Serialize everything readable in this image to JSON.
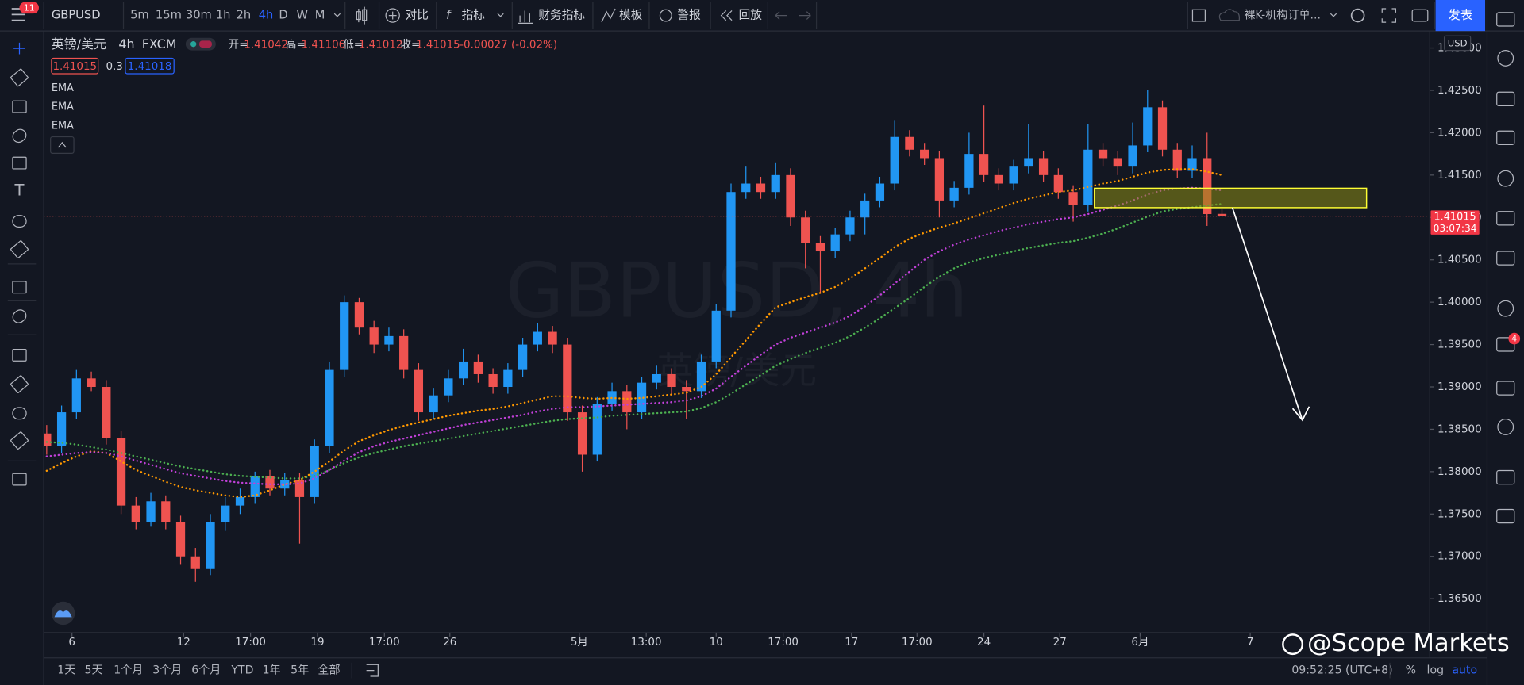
{
  "toolbar": {
    "badge": "11",
    "symbol": "GBPUSD",
    "intervals": [
      "5m",
      "15m",
      "30m",
      "1h",
      "2h",
      "4h",
      "D",
      "W",
      "M"
    ],
    "buttons": [
      "对比",
      "指标",
      "财务指标",
      "模板",
      "警报",
      "回放"
    ],
    "layout_name": "裸K-机构订单...",
    "publish": "发表"
  },
  "legend": {
    "name": "英镑/美元",
    "interval": "4h",
    "exchange": "FXCM",
    "ohlc": [
      {
        "label": "开=",
        "value": "1.41042"
      },
      {
        "label": "高=",
        "value": "1.41106"
      },
      {
        "label": "低=",
        "value": "1.41012"
      },
      {
        "label": "收=",
        "value": "1.41015"
      }
    ],
    "change": "-0.00027 (-0.02%)",
    "bid": "1.41015",
    "spread": "0.3",
    "ask": "1.41018",
    "indicators": [
      "EMA",
      "EMA",
      "EMA"
    ]
  },
  "watermark": {
    "symbol": "GBPUSD, 4h",
    "name": "英镑/美元"
  },
  "chart_data": {
    "type": "candlestick",
    "up_color": "#2196f3",
    "down_color": "#ef5350",
    "candles": [
      [
        1.3845,
        1.3855,
        1.382,
        1.383
      ],
      [
        1.383,
        1.3878,
        1.3822,
        1.387
      ],
      [
        1.387,
        1.392,
        1.3862,
        1.391
      ],
      [
        1.391,
        1.3918,
        1.3895,
        1.39
      ],
      [
        1.39,
        1.3908,
        1.3832,
        1.384
      ],
      [
        1.384,
        1.3848,
        1.375,
        1.376
      ],
      [
        1.376,
        1.377,
        1.3732,
        1.374
      ],
      [
        1.374,
        1.3775,
        1.3735,
        1.3765
      ],
      [
        1.3765,
        1.3772,
        1.3732,
        1.374
      ],
      [
        1.374,
        1.3748,
        1.369,
        1.37
      ],
      [
        1.37,
        1.371,
        1.367,
        1.3685
      ],
      [
        1.3685,
        1.375,
        1.3678,
        1.374
      ],
      [
        1.374,
        1.377,
        1.373,
        1.376
      ],
      [
        1.376,
        1.378,
        1.375,
        1.377
      ],
      [
        1.377,
        1.38,
        1.3762,
        1.3795
      ],
      [
        1.3795,
        1.3802,
        1.3772,
        1.378
      ],
      [
        1.378,
        1.3798,
        1.3772,
        1.379
      ],
      [
        1.379,
        1.3798,
        1.3715,
        1.377
      ],
      [
        1.377,
        1.3838,
        1.3762,
        1.383
      ],
      [
        1.383,
        1.393,
        1.3822,
        1.392
      ],
      [
        1.392,
        1.4008,
        1.3912,
        1.4
      ],
      [
        1.4,
        1.4005,
        1.3962,
        1.397
      ],
      [
        1.397,
        1.3978,
        1.394,
        1.395
      ],
      [
        1.395,
        1.397,
        1.3942,
        1.396
      ],
      [
        1.396,
        1.3968,
        1.391,
        1.392
      ],
      [
        1.392,
        1.3928,
        1.386,
        1.387
      ],
      [
        1.387,
        1.3898,
        1.3862,
        1.389
      ],
      [
        1.389,
        1.392,
        1.3882,
        1.391
      ],
      [
        1.391,
        1.3945,
        1.3902,
        1.393
      ],
      [
        1.393,
        1.3938,
        1.3905,
        1.3915
      ],
      [
        1.3915,
        1.3922,
        1.3892,
        1.39
      ],
      [
        1.39,
        1.3928,
        1.3892,
        1.392
      ],
      [
        1.392,
        1.3958,
        1.3912,
        1.395
      ],
      [
        1.395,
        1.3975,
        1.3942,
        1.3965
      ],
      [
        1.3965,
        1.3972,
        1.394,
        1.395
      ],
      [
        1.395,
        1.3958,
        1.386,
        1.387
      ],
      [
        1.387,
        1.3878,
        1.38,
        1.382
      ],
      [
        1.382,
        1.3888,
        1.3812,
        1.388
      ],
      [
        1.388,
        1.3905,
        1.3872,
        1.3895
      ],
      [
        1.3895,
        1.3902,
        1.385,
        1.387
      ],
      [
        1.387,
        1.3912,
        1.3862,
        1.3905
      ],
      [
        1.3905,
        1.3925,
        1.3897,
        1.3915
      ],
      [
        1.3915,
        1.3922,
        1.3892,
        1.39
      ],
      [
        1.39,
        1.3908,
        1.3862,
        1.3895
      ],
      [
        1.3895,
        1.3938,
        1.3887,
        1.393
      ],
      [
        1.393,
        1.3998,
        1.3922,
        1.399
      ],
      [
        1.399,
        1.414,
        1.3982,
        1.413
      ],
      [
        1.413,
        1.416,
        1.4122,
        1.414
      ],
      [
        1.414,
        1.4148,
        1.4122,
        1.413
      ],
      [
        1.413,
        1.4165,
        1.4122,
        1.415
      ],
      [
        1.415,
        1.4158,
        1.409,
        1.41
      ],
      [
        1.41,
        1.4108,
        1.404,
        1.407
      ],
      [
        1.407,
        1.4078,
        1.401,
        1.406
      ],
      [
        1.406,
        1.4088,
        1.4052,
        1.408
      ],
      [
        1.408,
        1.4108,
        1.4072,
        1.41
      ],
      [
        1.41,
        1.4128,
        1.408,
        1.412
      ],
      [
        1.412,
        1.4148,
        1.4112,
        1.414
      ],
      [
        1.414,
        1.4215,
        1.4132,
        1.4195
      ],
      [
        1.4195,
        1.4203,
        1.4172,
        1.418
      ],
      [
        1.418,
        1.4188,
        1.4162,
        1.417
      ],
      [
        1.417,
        1.4178,
        1.41,
        1.412
      ],
      [
        1.412,
        1.4143,
        1.4112,
        1.4135
      ],
      [
        1.4135,
        1.42,
        1.4127,
        1.4175
      ],
      [
        1.4175,
        1.4232,
        1.4142,
        1.415
      ],
      [
        1.415,
        1.4158,
        1.4132,
        1.414
      ],
      [
        1.414,
        1.4168,
        1.4132,
        1.416
      ],
      [
        1.416,
        1.421,
        1.4152,
        1.417
      ],
      [
        1.417,
        1.4178,
        1.4142,
        1.415
      ],
      [
        1.415,
        1.4158,
        1.4122,
        1.413
      ],
      [
        1.413,
        1.4138,
        1.4095,
        1.4115
      ],
      [
        1.4115,
        1.421,
        1.4107,
        1.418
      ],
      [
        1.418,
        1.4188,
        1.416,
        1.417
      ],
      [
        1.417,
        1.4178,
        1.415,
        1.416
      ],
      [
        1.416,
        1.4212,
        1.4152,
        1.4185
      ],
      [
        1.4185,
        1.425,
        1.4177,
        1.423
      ],
      [
        1.423,
        1.4238,
        1.4172,
        1.418
      ],
      [
        1.418,
        1.4188,
        1.4147,
        1.4155
      ],
      [
        1.4155,
        1.4185,
        1.4147,
        1.417
      ],
      [
        1.417,
        1.42,
        1.409,
        1.4104
      ],
      [
        1.41042,
        1.41106,
        1.41012,
        1.41015
      ]
    ],
    "ema": [
      {
        "color": "#ff9800",
        "values": [
          1.3801,
          1.381,
          1.3818,
          1.3824,
          1.3822,
          1.3812,
          1.3802,
          1.3795,
          1.3788,
          1.3782,
          1.3778,
          1.3775,
          1.3772,
          1.377,
          1.3772,
          1.3778,
          1.3785,
          1.379,
          1.38,
          1.3812,
          1.3825,
          1.3836,
          1.3843,
          1.3849,
          1.3854,
          1.3858,
          1.3862,
          1.3866,
          1.3869,
          1.3872,
          1.3874,
          1.3877,
          1.3881,
          1.3885,
          1.3889,
          1.3889,
          1.3887,
          1.3886,
          1.3887,
          1.3886,
          1.3887,
          1.3889,
          1.3891,
          1.3893,
          1.39,
          1.3915,
          1.3935,
          1.3955,
          1.3975,
          1.3994,
          1.4,
          1.4006,
          1.4011,
          1.4018,
          1.4028,
          1.404,
          1.4052,
          1.4065,
          1.4075,
          1.4082,
          1.4088,
          1.4093,
          1.4099,
          1.4105,
          1.4111,
          1.4117,
          1.4122,
          1.4126,
          1.413,
          1.4132,
          1.4136,
          1.414,
          1.4143,
          1.4148,
          1.4153,
          1.4156,
          1.4157,
          1.4157,
          1.4154,
          1.415
        ]
      },
      {
        "color": "#c040d8",
        "values": [
          1.3818,
          1.382,
          1.3822,
          1.3823,
          1.3822,
          1.3818,
          1.3813,
          1.3808,
          1.3803,
          1.3798,
          1.3795,
          1.3792,
          1.3789,
          1.3787,
          1.3786,
          1.3785,
          1.3785,
          1.3786,
          1.3792,
          1.3802,
          1.3813,
          1.3823,
          1.383,
          1.3835,
          1.3839,
          1.3843,
          1.3847,
          1.3851,
          1.3855,
          1.3858,
          1.3861,
          1.3864,
          1.3867,
          1.3871,
          1.3874,
          1.3876,
          1.3876,
          1.3877,
          1.3878,
          1.3879,
          1.388,
          1.3881,
          1.3882,
          1.3884,
          1.3889,
          1.3898,
          1.3912,
          1.3925,
          1.3938,
          1.395,
          1.3958,
          1.3964,
          1.397,
          1.3976,
          1.3984,
          1.3995,
          1.4008,
          1.4022,
          1.4036,
          1.405,
          1.406,
          1.4068,
          1.4074,
          1.4079,
          1.4084,
          1.4088,
          1.4092,
          1.4095,
          1.4098,
          1.41,
          1.4104,
          1.4109,
          1.4114,
          1.412,
          1.4127,
          1.4132,
          1.4134,
          1.4135,
          1.4134,
          1.4132
        ]
      },
      {
        "color": "#4caf50",
        "values": [
          1.3835,
          1.3834,
          1.3832,
          1.3829,
          1.3826,
          1.3822,
          1.3818,
          1.3814,
          1.381,
          1.3806,
          1.3803,
          1.38,
          1.3797,
          1.3795,
          1.3794,
          1.3793,
          1.3792,
          1.3792,
          1.3795,
          1.3802,
          1.381,
          1.3817,
          1.3822,
          1.3826,
          1.383,
          1.3833,
          1.3836,
          1.3839,
          1.3842,
          1.3845,
          1.3848,
          1.3851,
          1.3854,
          1.3857,
          1.386,
          1.3862,
          1.3863,
          1.3864,
          1.3866,
          1.3867,
          1.3868,
          1.3869,
          1.387,
          1.3871,
          1.3875,
          1.3882,
          1.3892,
          1.3903,
          1.3914,
          1.3925,
          1.3933,
          1.394,
          1.3946,
          1.3952,
          1.396,
          1.397,
          1.3981,
          1.3993,
          1.4005,
          1.4018,
          1.403,
          1.404,
          1.4047,
          1.4052,
          1.4056,
          1.406,
          1.4064,
          1.4067,
          1.407,
          1.4072,
          1.4076,
          1.4081,
          1.4087,
          1.4094,
          1.4101,
          1.4107,
          1.411,
          1.4112,
          1.4114,
          1.4116
        ]
      }
    ],
    "xlim": [
      -0.2,
      92.9
    ],
    "xticks": [
      {
        "value": 1.7,
        "label": "6"
      },
      {
        "value": 9.2,
        "label": "12"
      },
      {
        "value": 13.7,
        "label": "17:00"
      },
      {
        "value": 18.2,
        "label": "19"
      },
      {
        "value": 22.7,
        "label": "17:00"
      },
      {
        "value": 27.1,
        "label": "26"
      },
      {
        "value": 35.8,
        "label": "5月"
      },
      {
        "value": 40.3,
        "label": "13:00"
      },
      {
        "value": 45.0,
        "label": "10"
      },
      {
        "value": 49.5,
        "label": "17:00"
      },
      {
        "value": 54.1,
        "label": "17"
      },
      {
        "value": 58.5,
        "label": "17:00"
      },
      {
        "value": 63.0,
        "label": "24"
      },
      {
        "value": 68.1,
        "label": "27"
      },
      {
        "value": 73.5,
        "label": "6月"
      },
      {
        "value": 80.9,
        "label": "7"
      }
    ],
    "ylim": [
      1.361,
      1.432
    ],
    "yticks": [
      {
        "value": 1.365,
        "label": "1.36500"
      },
      {
        "value": 1.37,
        "label": "1.37000"
      },
      {
        "value": 1.375,
        "label": "1.37500"
      },
      {
        "value": 1.38,
        "label": "1.38000"
      },
      {
        "value": 1.385,
        "label": "1.38500"
      },
      {
        "value": 1.39,
        "label": "1.39000"
      },
      {
        "value": 1.395,
        "label": "1.39500"
      },
      {
        "value": 1.4,
        "label": "1.40000"
      },
      {
        "value": 1.405,
        "label": "1.40500"
      },
      {
        "value": 1.41,
        "label": "1.41000"
      },
      {
        "value": 1.415,
        "label": "1.41500"
      },
      {
        "value": 1.42,
        "label": "1.42000"
      },
      {
        "value": 1.425,
        "label": "1.42500"
      },
      {
        "value": 1.43,
        "label": "1.43000"
      }
    ],
    "grid": false,
    "last_price": 1.41015,
    "countdown": "03:07:34",
    "currency": "USD"
  },
  "bottom_bar": {
    "ranges": [
      "1天",
      "5天",
      "1个月",
      "3个月",
      "6个月",
      "YTD",
      "1年",
      "5年",
      "全部"
    ],
    "clock": "09:52:25 (UTC+8)",
    "options": [
      "%",
      "log",
      "auto"
    ]
  },
  "right_badge": "4",
  "brand": "@Scope Markets"
}
